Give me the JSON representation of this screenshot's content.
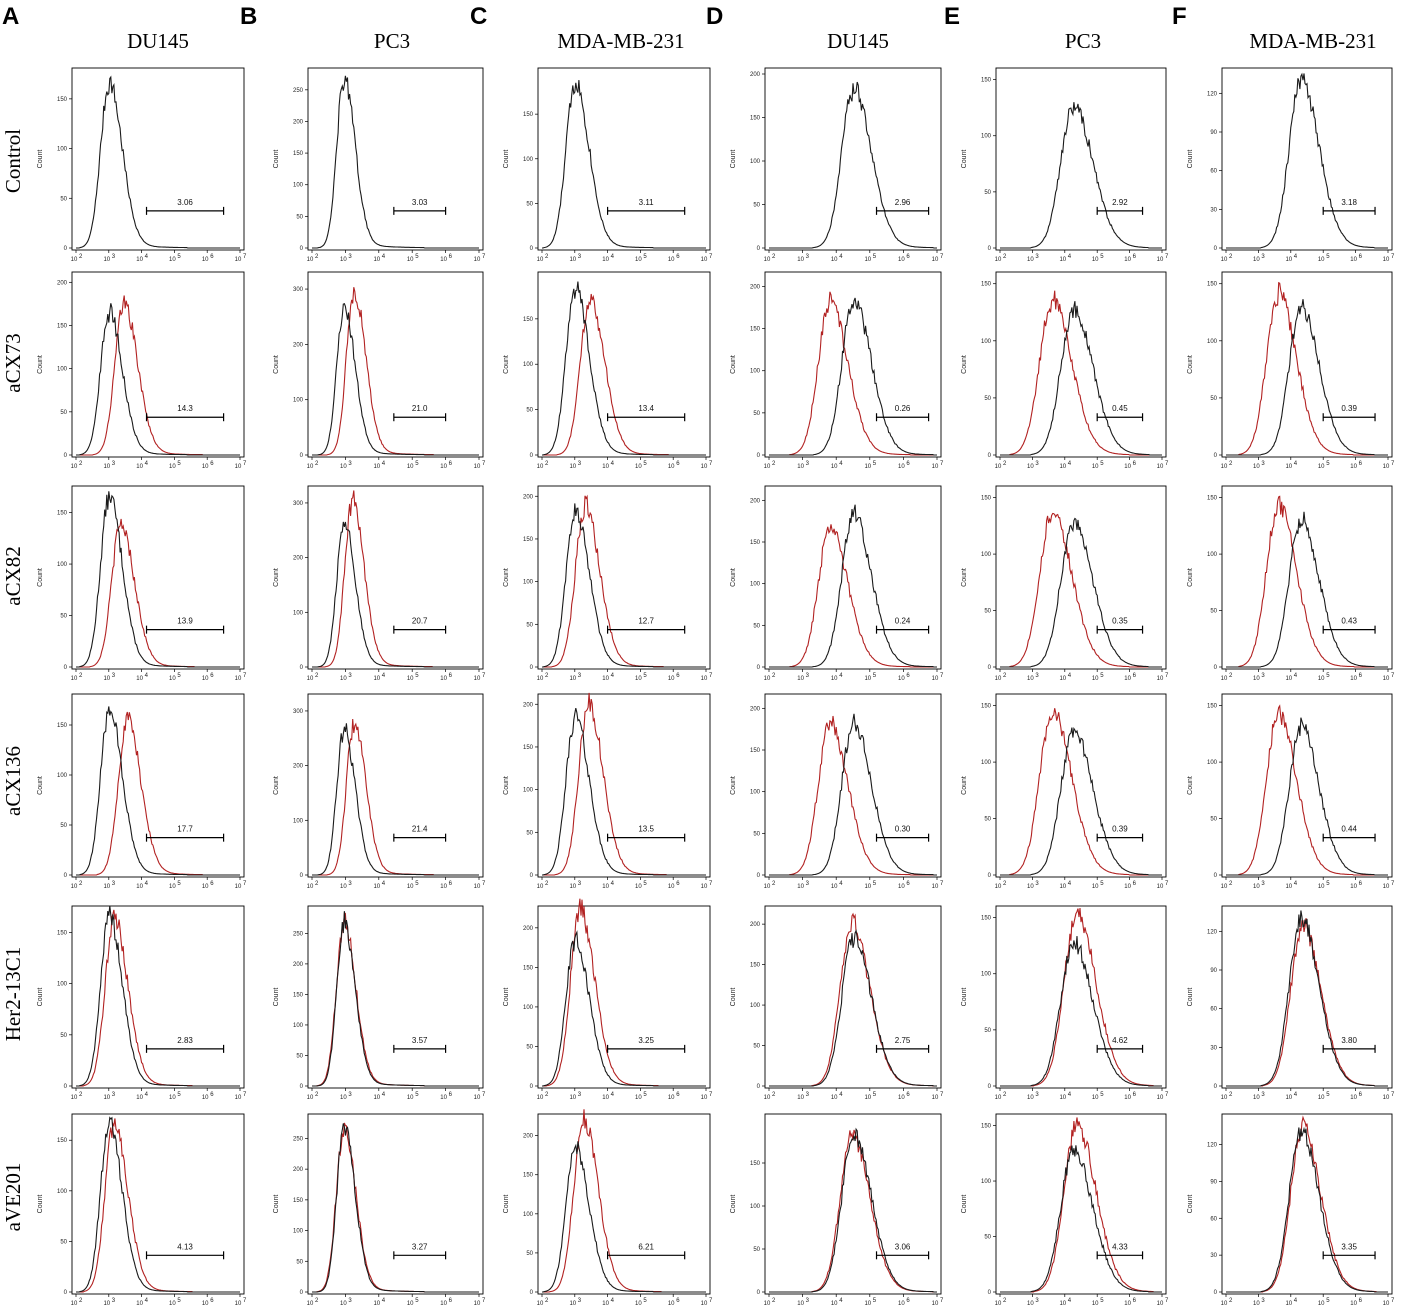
{
  "panel_letters": [
    "A",
    "B",
    "C",
    "D",
    "E",
    "F"
  ],
  "columns": [
    "DU145",
    "PC3",
    "MDA-MB-231",
    "DU145",
    "PC3",
    "MDA-MB-231"
  ],
  "rows": [
    "Control",
    "aCX73",
    "aCX82",
    "aCX136",
    "Her2-13C1",
    "aVE201"
  ],
  "colors": {
    "control_curve": "#1a1a1a",
    "treated_curve": "#b22222"
  },
  "chart_data": {
    "type": "histogram-grid",
    "description_axis": "log10 fluorescence intensity (10^2 to 10^7), y = Count",
    "ylabel": "Count",
    "x_ticks": [
      "10",
      "10",
      "10",
      "10",
      "10",
      "10"
    ],
    "x_tick_exponents": [
      "2",
      "3",
      "4",
      "5",
      "6",
      "7"
    ],
    "xlim_log10": [
      2,
      7
    ],
    "y_ticks_by_cell": [
      [
        [
          0,
          50,
          100,
          150
        ],
        [
          0,
          50,
          100,
          150,
          200,
          250
        ],
        [
          0,
          50,
          100,
          150
        ],
        [
          0,
          50,
          100,
          150,
          200
        ],
        [
          0,
          50,
          100,
          150
        ],
        [
          0,
          30,
          60,
          90,
          120
        ]
      ],
      [
        [
          0,
          50,
          100,
          150,
          200
        ],
        [
          0,
          100,
          200,
          300
        ],
        [
          0,
          50,
          100,
          150
        ],
        [
          0,
          50,
          100,
          150,
          200
        ],
        [
          0,
          50,
          100,
          150
        ],
        [
          0,
          50,
          100,
          150
        ]
      ],
      [
        [
          0,
          50,
          100,
          150
        ],
        [
          0,
          100,
          200,
          300
        ],
        [
          0,
          50,
          100,
          150,
          200
        ],
        [
          0,
          50,
          100,
          150,
          200
        ],
        [
          0,
          50,
          100,
          150
        ],
        [
          0,
          50,
          100,
          150
        ]
      ],
      [
        [
          0,
          50,
          100,
          150
        ],
        [
          0,
          100,
          200,
          300
        ],
        [
          0,
          50,
          100,
          150,
          200
        ],
        [
          0,
          50,
          100,
          150,
          200
        ],
        [
          0,
          50,
          100,
          150
        ],
        [
          0,
          50,
          100,
          150
        ]
      ],
      [
        [
          0,
          50,
          100,
          150
        ],
        [
          0,
          50,
          100,
          150,
          200,
          250
        ],
        [
          0,
          50,
          100,
          150,
          200
        ],
        [
          0,
          50,
          100,
          150,
          200
        ],
        [
          0,
          50,
          100,
          150
        ],
        [
          0,
          30,
          60,
          90,
          120
        ]
      ],
      [
        [
          0,
          50,
          100,
          150
        ],
        [
          0,
          50,
          100,
          150,
          200,
          250
        ],
        [
          0,
          50,
          100,
          150,
          200
        ],
        [
          0,
          50,
          100,
          150
        ],
        [
          0,
          50,
          100,
          150
        ],
        [
          0,
          30,
          60,
          90,
          120
        ]
      ]
    ],
    "ymax_by_cell": [
      [
        175,
        275,
        195,
        200,
        155,
        135
      ],
      [
        205,
        320,
        195,
        210,
        155,
        155
      ],
      [
        170,
        320,
        205,
        210,
        155,
        155
      ],
      [
        175,
        320,
        205,
        210,
        155,
        155
      ],
      [
        170,
        285,
        220,
        215,
        155,
        135
      ],
      [
        170,
        280,
        220,
        200,
        155,
        140
      ]
    ],
    "gate_values": [
      [
        "3.06",
        "3.03",
        "3.11",
        "2.96",
        "2.92",
        "3.18"
      ],
      [
        "14.3",
        "21.0",
        "13.4",
        "0.26",
        "0.45",
        "0.39"
      ],
      [
        "13.9",
        "20.7",
        "12.7",
        "0.24",
        "0.35",
        "0.43"
      ],
      [
        "17.7",
        "21.4",
        "13.5",
        "0.30",
        "0.39",
        "0.44"
      ],
      [
        "2.83",
        "3.57",
        "3.25",
        "2.75",
        "4.62",
        "3.80"
      ],
      [
        "4.13",
        "3.27",
        "6.21",
        "3.06",
        "4.33",
        "3.35"
      ]
    ],
    "gate_range_log10": [
      [
        4.15,
        6.5
      ],
      [
        4.45,
        6.0
      ],
      [
        4.0,
        6.35
      ],
      [
        5.2,
        6.75
      ],
      [
        5.0,
        6.4
      ],
      [
        5.0,
        6.6
      ]
    ],
    "control_peak": {
      "log10": [
        3.0,
        2.95,
        3.0,
        4.5,
        4.25,
        4.3
      ],
      "height": [
        163,
        262,
        182,
        180,
        125,
        128
      ]
    },
    "treated_peak": {
      "log10": [
        [
          null,
          null,
          null,
          null,
          null,
          null
        ],
        [
          3.45,
          3.25,
          3.45,
          3.8,
          3.6,
          3.6
        ],
        [
          3.35,
          3.2,
          3.3,
          3.8,
          3.6,
          3.6
        ],
        [
          3.55,
          3.25,
          3.4,
          3.8,
          3.6,
          3.6
        ],
        [
          3.15,
          2.95,
          3.15,
          4.45,
          4.35,
          4.35
        ],
        [
          3.15,
          2.95,
          3.25,
          4.45,
          4.35,
          4.35
        ]
      ],
      "height": [
        [
          null,
          null,
          null,
          null,
          null,
          null
        ],
        [
          172,
          290,
          168,
          178,
          133,
          138
        ],
        [
          136,
          298,
          185,
          163,
          135,
          140
        ],
        [
          152,
          273,
          198,
          178,
          142,
          140
        ],
        [
          160,
          265,
          218,
          197,
          150,
          122
        ],
        [
          164,
          265,
          217,
          180,
          148,
          132
        ]
      ]
    },
    "curve_width_log10": [
      0.3,
      0.25,
      0.32,
      0.4,
      0.45,
      0.42
    ]
  }
}
